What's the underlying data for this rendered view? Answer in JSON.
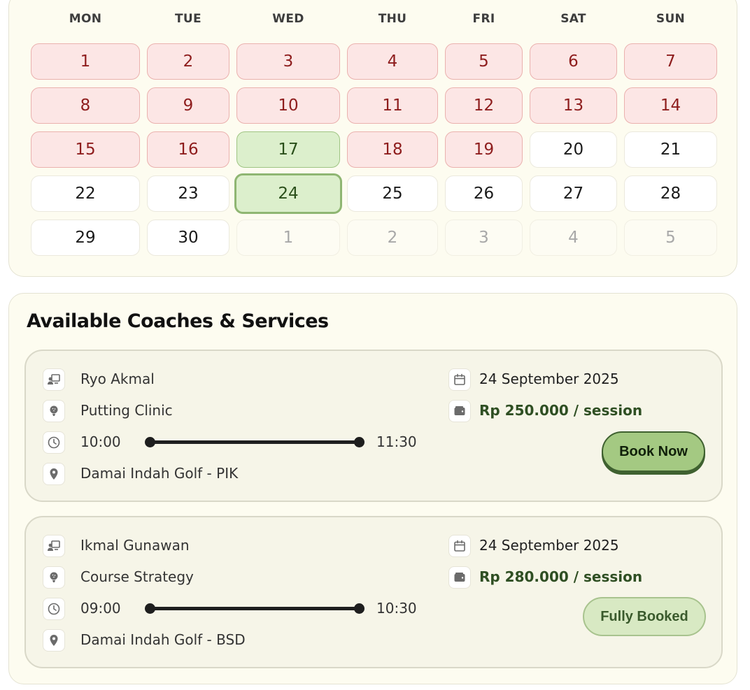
{
  "calendar": {
    "weekdays": [
      "MON",
      "TUE",
      "WED",
      "THU",
      "FRI",
      "SAT",
      "SUN"
    ],
    "weeks": [
      [
        {
          "label": "1",
          "status": "booked"
        },
        {
          "label": "2",
          "status": "booked"
        },
        {
          "label": "3",
          "status": "booked"
        },
        {
          "label": "4",
          "status": "booked"
        },
        {
          "label": "5",
          "status": "booked"
        },
        {
          "label": "6",
          "status": "booked"
        },
        {
          "label": "7",
          "status": "booked"
        }
      ],
      [
        {
          "label": "8",
          "status": "booked"
        },
        {
          "label": "9",
          "status": "booked"
        },
        {
          "label": "10",
          "status": "booked"
        },
        {
          "label": "11",
          "status": "booked"
        },
        {
          "label": "12",
          "status": "booked"
        },
        {
          "label": "13",
          "status": "booked"
        },
        {
          "label": "14",
          "status": "booked"
        }
      ],
      [
        {
          "label": "15",
          "status": "booked"
        },
        {
          "label": "16",
          "status": "booked"
        },
        {
          "label": "17",
          "status": "available"
        },
        {
          "label": "18",
          "status": "booked"
        },
        {
          "label": "19",
          "status": "booked"
        },
        {
          "label": "20",
          "status": "open"
        },
        {
          "label": "21",
          "status": "open"
        }
      ],
      [
        {
          "label": "22",
          "status": "open"
        },
        {
          "label": "23",
          "status": "open"
        },
        {
          "label": "24",
          "status": "selected"
        },
        {
          "label": "25",
          "status": "open"
        },
        {
          "label": "26",
          "status": "open"
        },
        {
          "label": "27",
          "status": "open"
        },
        {
          "label": "28",
          "status": "open"
        }
      ],
      [
        {
          "label": "29",
          "status": "open"
        },
        {
          "label": "30",
          "status": "open"
        },
        {
          "label": "1",
          "status": "other-month"
        },
        {
          "label": "2",
          "status": "other-month"
        },
        {
          "label": "3",
          "status": "other-month"
        },
        {
          "label": "4",
          "status": "other-month"
        },
        {
          "label": "5",
          "status": "other-month"
        }
      ]
    ]
  },
  "services_section": {
    "title": "Available Coaches & Services"
  },
  "services": [
    {
      "coach": "Ryo Akmal",
      "service": "Putting Clinic",
      "start_time": "10:00",
      "end_time": "11:30",
      "location": "Damai Indah Golf - PIK",
      "date": "24 September 2025",
      "price": "Rp 250.000 / session",
      "button_label": "Book Now",
      "button_state": "available"
    },
    {
      "coach": "Ikmal Gunawan",
      "service": "Course Strategy",
      "start_time": "09:00",
      "end_time": "10:30",
      "location": "Damai Indah Golf - BSD",
      "date": "24 September 2025",
      "price": "Rp 280.000 / session",
      "button_label": "Fully Booked",
      "button_state": "fully-booked"
    }
  ],
  "icons": {
    "coach": "coach-icon",
    "service": "golf-ball-icon",
    "time": "clock-icon",
    "location": "map-pin-icon",
    "date": "calendar-icon",
    "price": "wallet-icon"
  },
  "colors": {
    "booked_bg": "#fce6e5",
    "booked_text": "#8e1d1d",
    "available_bg": "#dcefcc",
    "available_text": "#2a4f1a",
    "primary_button": "#a4c982",
    "card_bg": "#fdfcf0"
  }
}
